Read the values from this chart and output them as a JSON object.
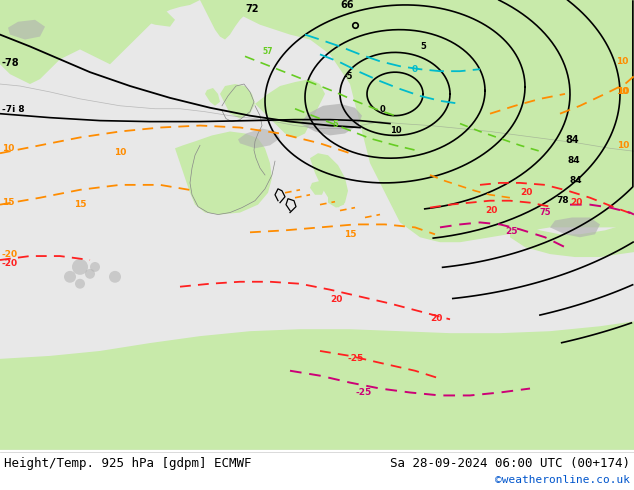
{
  "title_left": "Height/Temp. 925 hPa [gdpm] ECMWF",
  "title_right": "Sa 28-09-2024 06:00 UTC (00+174)",
  "credit": "©weatheronline.co.uk",
  "fig_width": 6.34,
  "fig_height": 4.9,
  "dpi": 100,
  "ocean_color": "#e8e8e8",
  "land_green_color": "#c8eaaa",
  "land_gray_color": "#b0b0b0",
  "land_light_gray": "#d0d0d0",
  "contour_geo_color": "#000000",
  "contour_orange_color": "#ff8c00",
  "contour_red_color": "#ff2020",
  "contour_magenta_color": "#cc0077",
  "contour_cyan_color": "#00bbcc",
  "contour_lgreen_color": "#66cc22",
  "bottom_bg": "#ffffff",
  "bottom_text_color": "#000000",
  "credit_color": "#0055cc",
  "font_size_title": 9,
  "font_size_credit": 8
}
